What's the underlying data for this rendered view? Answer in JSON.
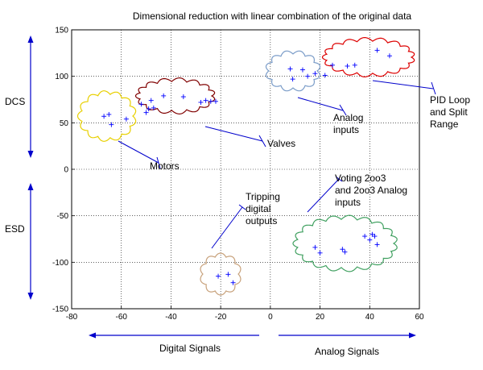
{
  "chart_data": {
    "type": "scatter",
    "title": "Dimensional reduction with linear combination of the original data",
    "xlabel": "",
    "ylabel": "",
    "xlim": [
      -80,
      60
    ],
    "ylim": [
      -150,
      150
    ],
    "xticks": [
      -80,
      -60,
      -40,
      -20,
      0,
      20,
      40,
      60
    ],
    "yticks": [
      -150,
      -100,
      -50,
      0,
      50,
      100,
      150
    ],
    "grid": true,
    "marker": "+",
    "marker_color": "#0000ff",
    "clusters": [
      {
        "label": "Motors",
        "outline_color": "#e8d000",
        "points": [
          [
            -67,
            57
          ],
          [
            -65,
            59
          ],
          [
            -64,
            48
          ],
          [
            -58,
            54
          ],
          [
            -52,
            70
          ],
          [
            -49,
            65
          ],
          [
            -47,
            66
          ],
          [
            -50,
            61
          ],
          [
            -48,
            74
          ]
        ]
      },
      {
        "label": "Valves",
        "outline_color": "#800000",
        "points": [
          [
            -43,
            79
          ],
          [
            -35,
            78
          ],
          [
            -28,
            72
          ],
          [
            -26,
            74
          ],
          [
            -24,
            73
          ],
          [
            -22,
            73
          ]
        ]
      },
      {
        "label": "Analog inputs",
        "outline_color": "#7a9cc8",
        "points": [
          [
            8,
            108
          ],
          [
            9,
            97
          ],
          [
            13,
            107
          ],
          [
            15,
            100
          ],
          [
            18,
            103
          ],
          [
            22,
            101
          ]
        ]
      },
      {
        "label": "PID Loop and Split Range",
        "outline_color": "#dd0000",
        "points": [
          [
            25,
            112
          ],
          [
            31,
            111
          ],
          [
            34,
            112
          ],
          [
            43,
            128
          ],
          [
            48,
            122
          ]
        ]
      },
      {
        "label": "Tripping digital outputs",
        "outline_color": "#c8a27c",
        "points": [
          [
            -21,
            -115
          ],
          [
            -17,
            -113
          ],
          [
            -15,
            -122
          ]
        ]
      },
      {
        "label": "Voting 2oo3 and 2oo3 Analog inputs",
        "outline_color": "#40a060",
        "points": [
          [
            18,
            -84
          ],
          [
            20,
            -90
          ],
          [
            29,
            -86
          ],
          [
            30,
            -89
          ],
          [
            38,
            -72
          ],
          [
            40,
            -76
          ],
          [
            41,
            -70
          ],
          [
            42,
            -72
          ],
          [
            43,
            -81
          ]
        ]
      }
    ],
    "side_labels": {
      "dcs": "DCS",
      "esd": "ESD",
      "digital": "Digital Signals",
      "analog": "Analog Signals"
    },
    "arrow_color": "#0000cc"
  }
}
